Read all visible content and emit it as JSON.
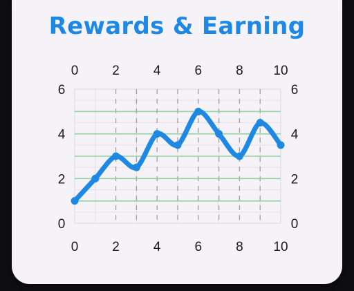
{
  "card": {
    "title": "Rewards & Earning"
  },
  "chart_data": {
    "type": "line",
    "title": "Rewards & Earning",
    "xlabel": "",
    "ylabel": "",
    "xlim": [
      0,
      10
    ],
    "ylim": [
      0,
      6
    ],
    "x_ticks": [
      "0",
      "2",
      "4",
      "6",
      "8",
      "10"
    ],
    "y_ticks": [
      "0",
      "2",
      "4",
      "6"
    ],
    "grid": {
      "vertical_dashed": true,
      "horizontal_lines_at": [
        1,
        2,
        3,
        4,
        5
      ]
    },
    "series": [
      {
        "x": [
          0,
          1,
          2,
          3,
          4,
          5,
          6,
          7,
          8,
          9,
          10
        ],
        "y": [
          1,
          2,
          3,
          2.5,
          4,
          3.5,
          5,
          4,
          3,
          4.5,
          3.5
        ]
      }
    ],
    "colors": {
      "line": "#1e88e5",
      "hgrid": "#8fd19e",
      "vgrid": "#9e9e9e",
      "frame": "#d8d4dc"
    }
  }
}
